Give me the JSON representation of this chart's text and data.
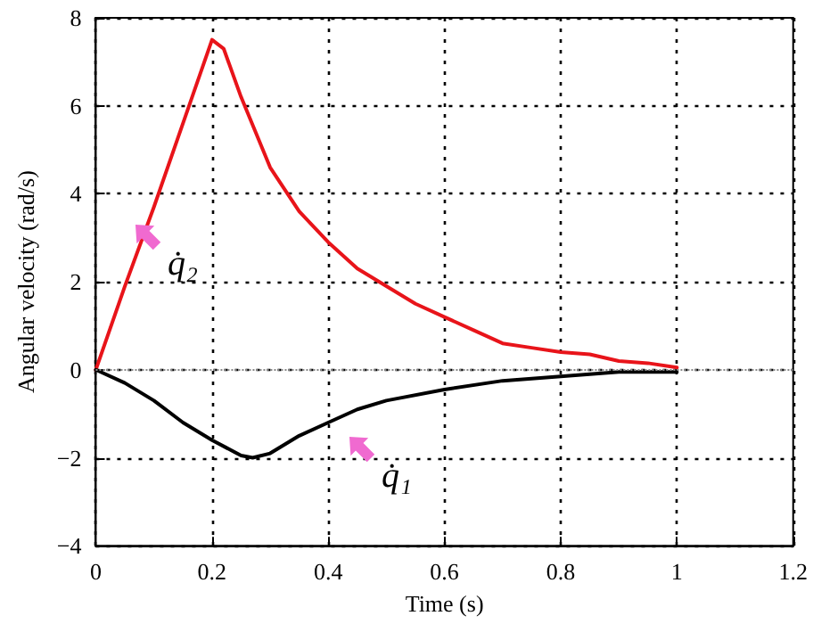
{
  "chart_data": {
    "type": "line",
    "xlabel": "Time (s)",
    "ylabel": "Angular velocity (rad/s)",
    "xlim": [
      0,
      1.2
    ],
    "xticks": [
      0,
      0.2,
      0.4,
      0.6,
      0.8,
      1,
      1.2
    ],
    "ylim": [
      -4,
      8
    ],
    "yticks": [
      {
        "value": -4,
        "label": "−4"
      },
      {
        "value": -2,
        "label": "−2"
      },
      0,
      2,
      4,
      6,
      8
    ],
    "grid": true,
    "line_style": "solid",
    "marker": "none",
    "series": [
      {
        "color": "#e8141a",
        "x": [
          0,
          0.05,
          0.1,
          0.15,
          0.2,
          0.22,
          0.25,
          0.3,
          0.35,
          0.4,
          0.45,
          0.5,
          0.55,
          0.6,
          0.65,
          0.7,
          0.75,
          0.8,
          0.85,
          0.9,
          0.95,
          1
        ],
        "values": [
          0,
          1.9,
          3.7,
          5.6,
          7.5,
          7.3,
          6.2,
          4.6,
          3.6,
          2.9,
          2.3,
          1.9,
          1.5,
          1.2,
          0.9,
          0.6,
          0.5,
          0.4,
          0.35,
          0.2,
          0.15,
          0.05
        ]
      },
      {
        "color": "#000000",
        "x": [
          0,
          0.05,
          0.1,
          0.15,
          0.2,
          0.25,
          0.27,
          0.3,
          0.35,
          0.4,
          0.45,
          0.5,
          0.6,
          0.7,
          0.8,
          0.85,
          0.9,
          1
        ],
        "values": [
          0,
          -0.3,
          -0.7,
          -1.2,
          -1.6,
          -1.95,
          -2,
          -1.9,
          -1.5,
          -1.2,
          -0.9,
          -0.7,
          -0.45,
          -0.25,
          -0.15,
          -0.1,
          -0.05,
          -0.05
        ]
      }
    ],
    "ref_lines": [
      {
        "axis": "y",
        "value": 0,
        "color": "#888888",
        "line_style": "dotted"
      }
    ],
    "annotations": [
      "q̇₂",
      "q̇₁"
    ]
  }
}
